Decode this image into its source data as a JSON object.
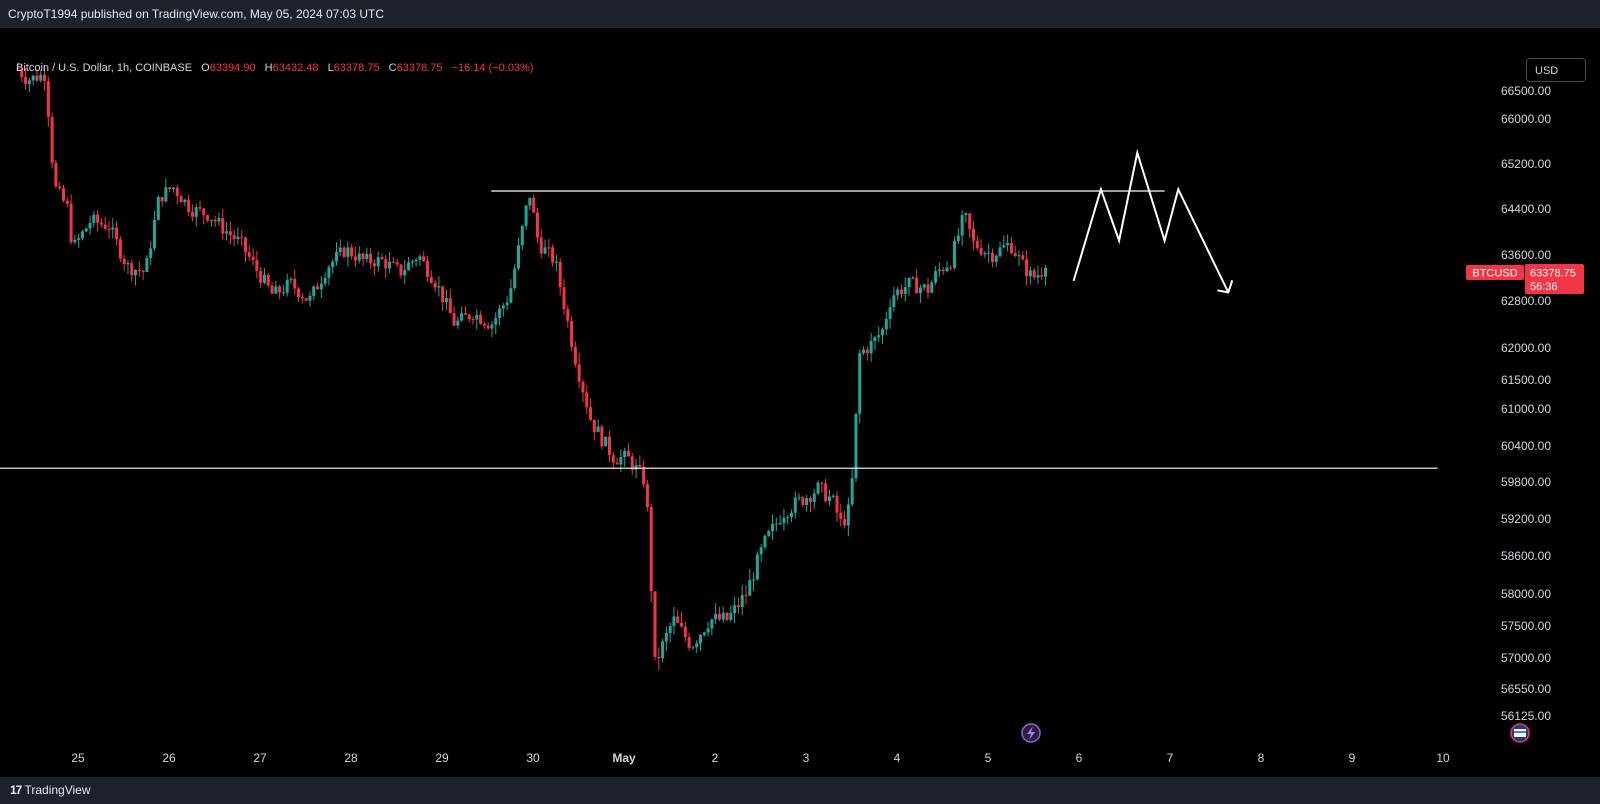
{
  "header": {
    "published": "CryptoT1994 published on TradingView.com, May 05, 2024 07:03 UTC"
  },
  "legend": {
    "symbol": "Bitcoin / U.S. Dollar, 1h, COINBASE",
    "open_label": "O",
    "open": "63394.90",
    "high_label": "H",
    "high": "63432.48",
    "low_label": "L",
    "low": "63378.75",
    "close_label": "C",
    "close": "63378.75",
    "change": "−16.14 (−0.03%)"
  },
  "currency_button": "USD",
  "price_tag": {
    "symbol": "BTCUSD",
    "price": "63378.75",
    "countdown": "56:36"
  },
  "footer": {
    "brand": "TradingView",
    "logo": "17"
  },
  "colors": {
    "up": "#26a69a",
    "down": "#f23645",
    "background": "#000000",
    "drawing": "#ffffff"
  },
  "icons": [
    "lightning-icon",
    "flag-icon",
    "tradingview-logo-icon"
  ],
  "chart_data": {
    "type": "candlestick",
    "title": "Bitcoin / U.S. Dollar, 1h, COINBASE",
    "x_ticks": [
      "25",
      "26",
      "27",
      "28",
      "29",
      "30",
      "May",
      "2",
      "3",
      "4",
      "5",
      "6",
      "7",
      "8",
      "9",
      "10"
    ],
    "y_ticks": [
      "66500.00",
      "66000.00",
      "65200.00",
      "64400.00",
      "63600.00",
      "62800.00",
      "62000.00",
      "61500.00",
      "61000.00",
      "60400.00",
      "59800.00",
      "59200.00",
      "58600.00",
      "58000.00",
      "57500.00",
      "57000.00",
      "56550.00",
      "56125.00"
    ],
    "ylim": [
      55900,
      67400
    ],
    "grid": false,
    "price_path": [
      [
        0.0,
        66900
      ],
      [
        0.1,
        66700
      ],
      [
        0.3,
        66800
      ],
      [
        0.4,
        64800
      ],
      [
        0.55,
        64400
      ],
      [
        0.6,
        63700
      ],
      [
        0.8,
        64200
      ],
      [
        1.0,
        64100
      ],
      [
        1.2,
        63400
      ],
      [
        1.4,
        63300
      ],
      [
        1.55,
        64600
      ],
      [
        1.7,
        64800
      ],
      [
        1.9,
        64400
      ],
      [
        2.1,
        64300
      ],
      [
        2.3,
        64000
      ],
      [
        2.45,
        63800
      ],
      [
        2.6,
        63400
      ],
      [
        2.8,
        62900
      ],
      [
        3.0,
        63100
      ],
      [
        3.2,
        62800
      ],
      [
        3.4,
        63400
      ],
      [
        3.6,
        63700
      ],
      [
        3.8,
        63500
      ],
      [
        4.0,
        63500
      ],
      [
        4.2,
        63300
      ],
      [
        4.4,
        63600
      ],
      [
        4.6,
        63100
      ],
      [
        4.8,
        62400
      ],
      [
        5.0,
        62600
      ],
      [
        5.2,
        62400
      ],
      [
        5.4,
        62900
      ],
      [
        5.5,
        63700
      ],
      [
        5.62,
        64700
      ],
      [
        5.72,
        63800
      ],
      [
        5.9,
        63500
      ],
      [
        6.1,
        62000
      ],
      [
        6.3,
        60800
      ],
      [
        6.55,
        60200
      ],
      [
        6.7,
        60200
      ],
      [
        6.9,
        59800
      ],
      [
        7.0,
        56900
      ],
      [
        7.2,
        57600
      ],
      [
        7.4,
        57200
      ],
      [
        7.6,
        57600
      ],
      [
        7.8,
        57600
      ],
      [
        8.0,
        58000
      ],
      [
        8.2,
        58800
      ],
      [
        8.4,
        59300
      ],
      [
        8.6,
        59500
      ],
      [
        8.8,
        59700
      ],
      [
        8.95,
        59500
      ],
      [
        9.05,
        59100
      ],
      [
        9.15,
        59400
      ],
      [
        9.25,
        61900
      ],
      [
        9.4,
        62100
      ],
      [
        9.5,
        62300
      ],
      [
        9.6,
        62900
      ],
      [
        9.8,
        63100
      ],
      [
        10.0,
        63000
      ],
      [
        10.1,
        63300
      ],
      [
        10.25,
        63500
      ],
      [
        10.4,
        64300
      ],
      [
        10.5,
        63800
      ],
      [
        10.7,
        63600
      ],
      [
        10.9,
        63800
      ],
      [
        11.05,
        63400
      ],
      [
        11.15,
        63200
      ],
      [
        11.3,
        63379
      ]
    ],
    "horizontal_lines": [
      {
        "price": 64720,
        "from": 5.2,
        "to": 12.6
      },
      {
        "price": 60030,
        "from": -0.8,
        "to": 15.6
      }
    ],
    "projection": [
      [
        11.6,
        63150
      ],
      [
        11.9,
        64750
      ],
      [
        12.1,
        63850
      ],
      [
        12.3,
        65400
      ],
      [
        12.6,
        63850
      ],
      [
        12.75,
        64750
      ],
      [
        13.3,
        62950
      ]
    ],
    "last_price": 63378.75
  }
}
